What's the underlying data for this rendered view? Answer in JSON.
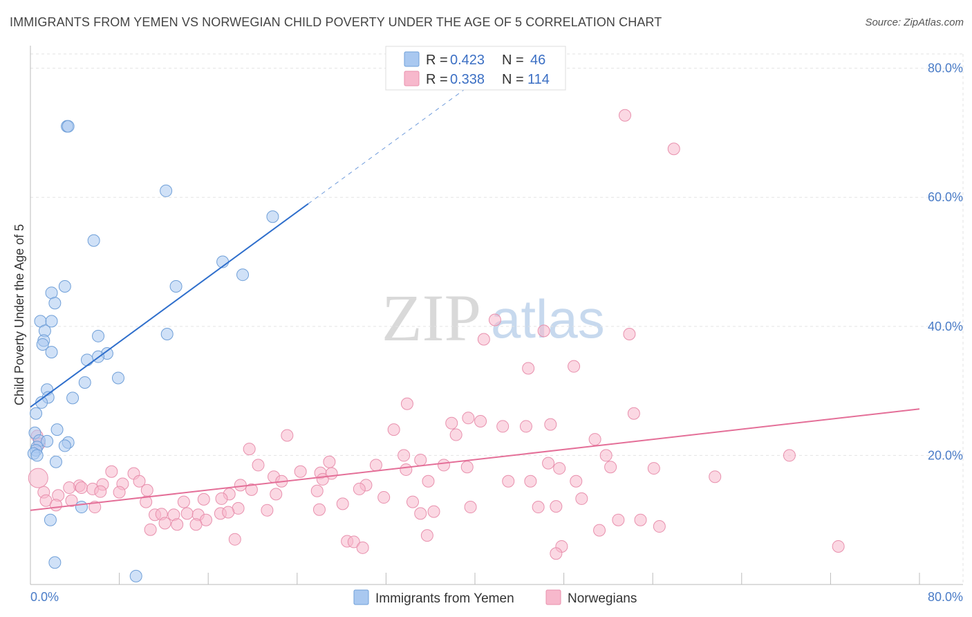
{
  "title": "IMMIGRANTS FROM YEMEN VS NORWEGIAN CHILD POVERTY UNDER THE AGE OF 5 CORRELATION CHART",
  "source": "Source: ZipAtlas.com",
  "watermark": {
    "zip": "ZIP",
    "atlas": "atlas"
  },
  "legend": {
    "r_label": "R =",
    "n_label": "N =",
    "series": [
      {
        "name": "Immigrants from Yemen",
        "r": "0.423",
        "n": "46"
      },
      {
        "name": "Norwegians",
        "r": "0.338",
        "n": "114"
      }
    ]
  },
  "colors": {
    "yemen_fill": "#a9c8f0",
    "yemen_stroke": "#6f9fd8",
    "yemen_line": "#2f6fcc",
    "norway_fill": "#f7b8cc",
    "norway_stroke": "#e890ad",
    "norway_line": "#e46f98",
    "tick": "#4a7cc7"
  },
  "chart_data": {
    "type": "scatter",
    "title": "IMMIGRANTS FROM YEMEN VS NORWEGIAN CHILD POVERTY UNDER THE AGE OF 5 CORRELATION CHART",
    "xlabel": "",
    "ylabel": "Child Poverty Under the Age of 5",
    "xlim": [
      0,
      80
    ],
    "ylim": [
      0,
      82
    ],
    "x_tick_labels": [
      "0.0%",
      "80.0%"
    ],
    "y_ticks": [
      20,
      40,
      60,
      80
    ],
    "y_tick_labels": [
      "20.0%",
      "40.0%",
      "60.0%",
      "80.0%"
    ],
    "grid": true,
    "series": [
      {
        "name": "Immigrants from Yemen",
        "r": 0.423,
        "n": 46,
        "trend": {
          "x0": 0,
          "y0": 27.5,
          "x1": 25,
          "y1": 59.0,
          "dashed_to_x": 40
        },
        "points": [
          [
            3.3,
            71
          ],
          [
            3.4,
            71
          ],
          [
            12.2,
            61
          ],
          [
            21.8,
            57
          ],
          [
            5.7,
            53.3
          ],
          [
            17.3,
            50
          ],
          [
            19.1,
            48
          ],
          [
            13.1,
            46.2
          ],
          [
            3.1,
            46.2
          ],
          [
            1.9,
            45.2
          ],
          [
            2.2,
            43.6
          ],
          [
            0.9,
            40.8
          ],
          [
            1.9,
            40.8
          ],
          [
            1.3,
            39.3
          ],
          [
            6.1,
            38.5
          ],
          [
            12.3,
            38.8
          ],
          [
            1.2,
            37.8
          ],
          [
            1.1,
            37.2
          ],
          [
            1.9,
            36
          ],
          [
            6.9,
            35.8
          ],
          [
            6.1,
            35.3
          ],
          [
            5.1,
            34.8
          ],
          [
            7.9,
            32
          ],
          [
            4.9,
            31.3
          ],
          [
            1.5,
            30.2
          ],
          [
            1.6,
            29
          ],
          [
            3.8,
            28.9
          ],
          [
            1.0,
            28.2
          ],
          [
            0.5,
            26.5
          ],
          [
            2.4,
            24
          ],
          [
            0.4,
            23.5
          ],
          [
            0.8,
            22.3
          ],
          [
            1.5,
            22.2
          ],
          [
            3.4,
            22
          ],
          [
            3.1,
            21.5
          ],
          [
            0.6,
            21.3
          ],
          [
            0.5,
            20.8
          ],
          [
            0.3,
            20.3
          ],
          [
            0.6,
            20
          ],
          [
            2.3,
            19
          ],
          [
            4.6,
            12
          ],
          [
            1.8,
            10
          ],
          [
            2.2,
            3.4
          ],
          [
            9.5,
            1.3
          ]
        ]
      },
      {
        "name": "Norwegians",
        "r": 0.338,
        "n": 114,
        "trend": {
          "x0": 0,
          "y0": 11.5,
          "x1": 80,
          "y1": 27.2
        },
        "points": [
          [
            53.5,
            72.7
          ],
          [
            57.9,
            67.5
          ],
          [
            41.8,
            41
          ],
          [
            46.2,
            39.3
          ],
          [
            53.9,
            38.8
          ],
          [
            40.8,
            38
          ],
          [
            44.8,
            33.5
          ],
          [
            48.9,
            33.8
          ],
          [
            33.9,
            28
          ],
          [
            54.3,
            26.5
          ],
          [
            39.4,
            25.8
          ],
          [
            40.5,
            25.3
          ],
          [
            37.9,
            25
          ],
          [
            42.5,
            24.5
          ],
          [
            44.6,
            24.5
          ],
          [
            46.8,
            24.8
          ],
          [
            32.7,
            24
          ],
          [
            38.3,
            23.2
          ],
          [
            23.1,
            23.1
          ],
          [
            50.8,
            22.5
          ],
          [
            19.7,
            21
          ],
          [
            33.6,
            20
          ],
          [
            51.8,
            20
          ],
          [
            68.3,
            20
          ],
          [
            35.1,
            19.3
          ],
          [
            26.9,
            19
          ],
          [
            46.6,
            18.8
          ],
          [
            37.2,
            18.5
          ],
          [
            31.1,
            18.5
          ],
          [
            20.5,
            18.5
          ],
          [
            39.3,
            18.2
          ],
          [
            52.2,
            18.2
          ],
          [
            47.6,
            18
          ],
          [
            56.1,
            18
          ],
          [
            33.8,
            17.8
          ],
          [
            24.3,
            17.5
          ],
          [
            7.3,
            17.5
          ],
          [
            9.3,
            17.2
          ],
          [
            26.1,
            17.3
          ],
          [
            27.1,
            17.2
          ],
          [
            21.9,
            16.7
          ],
          [
            26.3,
            16.3
          ],
          [
            61.6,
            16.7
          ],
          [
            22.6,
            16
          ],
          [
            43.0,
            16
          ],
          [
            45.0,
            16
          ],
          [
            49.1,
            16
          ],
          [
            35.8,
            16
          ],
          [
            9.8,
            16
          ],
          [
            8.3,
            15.6
          ],
          [
            6.5,
            15.5
          ],
          [
            4.4,
            15.3
          ],
          [
            4.6,
            15
          ],
          [
            5.6,
            14.8
          ],
          [
            3.5,
            15
          ],
          [
            18.9,
            15.4
          ],
          [
            30.2,
            15.4
          ],
          [
            29.6,
            14.8
          ],
          [
            19.9,
            14.7
          ],
          [
            25.8,
            14.5
          ],
          [
            1.2,
            14.3
          ],
          [
            6.3,
            14.4
          ],
          [
            8.0,
            14.3
          ],
          [
            10.5,
            14.6
          ],
          [
            2.5,
            13.8
          ],
          [
            17.9,
            14
          ],
          [
            22.1,
            14
          ],
          [
            31.8,
            13.5
          ],
          [
            17.2,
            13.3
          ],
          [
            15.6,
            13.2
          ],
          [
            49.6,
            13.3
          ],
          [
            1.4,
            13
          ],
          [
            3.7,
            13
          ],
          [
            10.4,
            12.8
          ],
          [
            13.8,
            12.8
          ],
          [
            34.4,
            12.8
          ],
          [
            28.1,
            12.5
          ],
          [
            2.3,
            12.3
          ],
          [
            5.8,
            12
          ],
          [
            39.6,
            12
          ],
          [
            45.7,
            12
          ],
          [
            47.3,
            12.1
          ],
          [
            18.7,
            11.8
          ],
          [
            17.1,
            11
          ],
          [
            17.8,
            11.2
          ],
          [
            26.0,
            11.6
          ],
          [
            21.3,
            11.5
          ],
          [
            35.1,
            11
          ],
          [
            14.1,
            11
          ],
          [
            15.1,
            10.8
          ],
          [
            11.2,
            10.8
          ],
          [
            11.8,
            10.9
          ],
          [
            12.9,
            10.8
          ],
          [
            36.3,
            11.3
          ],
          [
            15.8,
            10
          ],
          [
            52.9,
            10
          ],
          [
            54.9,
            10
          ],
          [
            12.1,
            9.5
          ],
          [
            13.2,
            9.3
          ],
          [
            14.9,
            9.3
          ],
          [
            56.6,
            9
          ],
          [
            10.8,
            8.5
          ],
          [
            51.2,
            8.4
          ],
          [
            35.7,
            7.6
          ],
          [
            18.4,
            7
          ],
          [
            28.5,
            6.7
          ],
          [
            29.1,
            6.6
          ],
          [
            29.9,
            5.7
          ],
          [
            47.8,
            5.9
          ],
          [
            72.7,
            5.9
          ],
          [
            47.3,
            4.8
          ],
          [
            0.7,
            16.5
          ],
          [
            0.6,
            23
          ],
          [
            0.8,
            21.8
          ]
        ]
      }
    ]
  }
}
